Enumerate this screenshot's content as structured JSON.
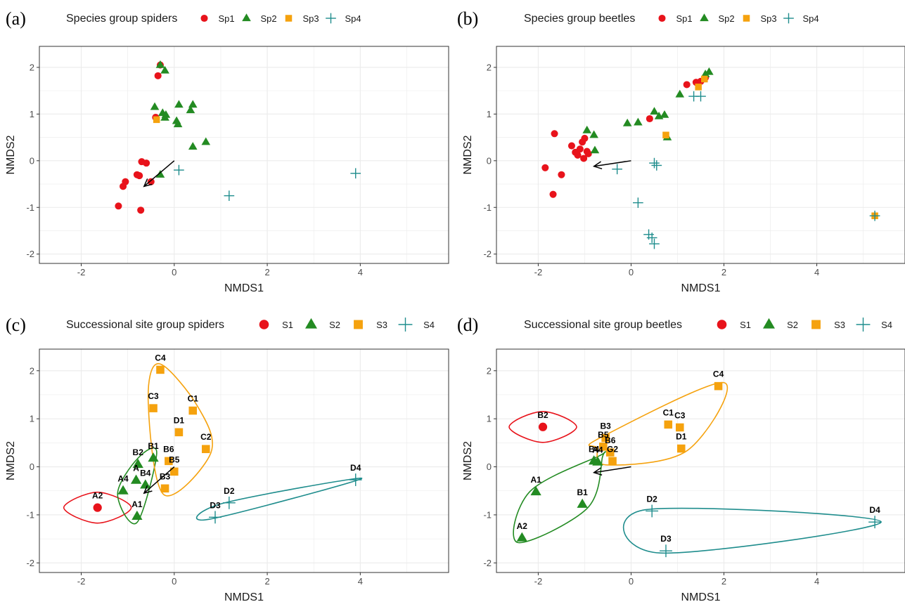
{
  "colors": {
    "Sp1": "#e8131b",
    "Sp2": "#238b22",
    "Sp3": "#f5a20e",
    "Sp4": "#1f8d8d",
    "grid": "#ebebeb",
    "arrow": "#000000"
  },
  "symbols": {
    "Sp1": "circle",
    "Sp2": "triangle",
    "Sp3": "square",
    "Sp4": "plus"
  },
  "chart_data": [
    {
      "panel_letter": "(a)",
      "type": "scatter",
      "legend_title": "Species group spiders",
      "legend_items": [
        "Sp1",
        "Sp2",
        "Sp3",
        "Sp4"
      ],
      "xlabel": "NMDS1",
      "ylabel": "NMDS2",
      "xlim": [
        -2.9,
        5.9
      ],
      "ylim": [
        -2.2,
        2.45
      ],
      "xticks": [
        -2,
        0,
        2,
        4
      ],
      "yticks": [
        -2,
        -1,
        0,
        1,
        2
      ],
      "arrow": {
        "from": [
          0,
          0
        ],
        "to": [
          -0.65,
          -0.55
        ]
      },
      "points": [
        {
          "g": "Sp1",
          "x": -0.3,
          "y": 2.05
        },
        {
          "g": "Sp1",
          "x": -0.35,
          "y": 1.82
        },
        {
          "g": "Sp1",
          "x": -0.4,
          "y": 0.93
        },
        {
          "g": "Sp1",
          "x": -0.7,
          "y": -0.02
        },
        {
          "g": "Sp1",
          "x": -0.6,
          "y": -0.05
        },
        {
          "g": "Sp1",
          "x": -0.8,
          "y": -0.3
        },
        {
          "g": "Sp1",
          "x": -0.75,
          "y": -0.32
        },
        {
          "g": "Sp1",
          "x": -1.05,
          "y": -0.45
        },
        {
          "g": "Sp1",
          "x": -1.1,
          "y": -0.55
        },
        {
          "g": "Sp1",
          "x": -0.5,
          "y": -0.45
        },
        {
          "g": "Sp1",
          "x": -1.2,
          "y": -0.97
        },
        {
          "g": "Sp1",
          "x": -0.72,
          "y": -1.06
        },
        {
          "g": "Sp2",
          "x": -0.3,
          "y": 2.05
        },
        {
          "g": "Sp2",
          "x": -0.2,
          "y": 1.93
        },
        {
          "g": "Sp2",
          "x": -0.42,
          "y": 1.15
        },
        {
          "g": "Sp2",
          "x": -0.25,
          "y": 1.02
        },
        {
          "g": "Sp2",
          "x": -0.18,
          "y": 0.98
        },
        {
          "g": "Sp2",
          "x": -0.2,
          "y": 0.92
        },
        {
          "g": "Sp2",
          "x": 0.1,
          "y": 1.2
        },
        {
          "g": "Sp2",
          "x": 0.4,
          "y": 1.2
        },
        {
          "g": "Sp2",
          "x": 0.35,
          "y": 1.08
        },
        {
          "g": "Sp2",
          "x": 0.05,
          "y": 0.85
        },
        {
          "g": "Sp2",
          "x": 0.08,
          "y": 0.78
        },
        {
          "g": "Sp2",
          "x": 0.4,
          "y": 0.3
        },
        {
          "g": "Sp2",
          "x": 0.68,
          "y": 0.4
        },
        {
          "g": "Sp2",
          "x": -0.3,
          "y": -0.3
        },
        {
          "g": "Sp3",
          "x": -0.38,
          "y": 0.88
        },
        {
          "g": "Sp4",
          "x": 0.1,
          "y": -0.2
        },
        {
          "g": "Sp4",
          "x": 1.18,
          "y": -0.75
        },
        {
          "g": "Sp4",
          "x": 3.9,
          "y": -0.27
        }
      ]
    },
    {
      "panel_letter": "(b)",
      "type": "scatter",
      "legend_title": "Species group beetles",
      "legend_items": [
        "Sp1",
        "Sp2",
        "Sp3",
        "Sp4"
      ],
      "xlabel": "NMDS1",
      "ylabel": "NMDS2",
      "xlim": [
        -2.9,
        5.9
      ],
      "ylim": [
        -2.2,
        2.45
      ],
      "xticks": [
        -2,
        0,
        2,
        4
      ],
      "yticks": [
        -2,
        -1,
        0,
        1,
        2
      ],
      "arrow": {
        "from": [
          0,
          0
        ],
        "to": [
          -0.8,
          -0.12
        ]
      },
      "points": [
        {
          "g": "Sp1",
          "x": -1.65,
          "y": 0.58
        },
        {
          "g": "Sp1",
          "x": -1.85,
          "y": -0.15
        },
        {
          "g": "Sp1",
          "x": -1.5,
          "y": -0.3
        },
        {
          "g": "Sp1",
          "x": -1.68,
          "y": -0.72
        },
        {
          "g": "Sp1",
          "x": -1.28,
          "y": 0.32
        },
        {
          "g": "Sp1",
          "x": -1.2,
          "y": 0.18
        },
        {
          "g": "Sp1",
          "x": -1.15,
          "y": 0.12
        },
        {
          "g": "Sp1",
          "x": -1.1,
          "y": 0.25
        },
        {
          "g": "Sp1",
          "x": -1.05,
          "y": 0.4
        },
        {
          "g": "Sp1",
          "x": -1.0,
          "y": 0.48
        },
        {
          "g": "Sp1",
          "x": -1.02,
          "y": 0.05
        },
        {
          "g": "Sp1",
          "x": -0.95,
          "y": 0.2
        },
        {
          "g": "Sp1",
          "x": -0.92,
          "y": 0.15
        },
        {
          "g": "Sp1",
          "x": 0.4,
          "y": 0.9
        },
        {
          "g": "Sp1",
          "x": 1.2,
          "y": 1.63
        },
        {
          "g": "Sp1",
          "x": 1.4,
          "y": 1.68
        },
        {
          "g": "Sp1",
          "x": 1.5,
          "y": 1.7
        },
        {
          "g": "Sp1",
          "x": 1.6,
          "y": 1.78
        },
        {
          "g": "Sp2",
          "x": -0.95,
          "y": 0.65
        },
        {
          "g": "Sp2",
          "x": -0.8,
          "y": 0.55
        },
        {
          "g": "Sp2",
          "x": -0.78,
          "y": 0.22
        },
        {
          "g": "Sp2",
          "x": -0.08,
          "y": 0.8
        },
        {
          "g": "Sp2",
          "x": 0.15,
          "y": 0.82
        },
        {
          "g": "Sp2",
          "x": 0.5,
          "y": 1.05
        },
        {
          "g": "Sp2",
          "x": 0.6,
          "y": 0.95
        },
        {
          "g": "Sp2",
          "x": 0.72,
          "y": 0.98
        },
        {
          "g": "Sp2",
          "x": 0.78,
          "y": 0.5
        },
        {
          "g": "Sp2",
          "x": 1.05,
          "y": 1.42
        },
        {
          "g": "Sp2",
          "x": 1.6,
          "y": 1.85
        },
        {
          "g": "Sp2",
          "x": 1.68,
          "y": 1.9
        },
        {
          "g": "Sp3",
          "x": 0.75,
          "y": 0.55
        },
        {
          "g": "Sp3",
          "x": 1.45,
          "y": 1.58
        },
        {
          "g": "Sp3",
          "x": 1.58,
          "y": 1.75
        },
        {
          "g": "Sp3",
          "x": 5.25,
          "y": -1.18
        },
        {
          "g": "Sp4",
          "x": -0.3,
          "y": -0.18
        },
        {
          "g": "Sp4",
          "x": 0.5,
          "y": -0.05
        },
        {
          "g": "Sp4",
          "x": 0.55,
          "y": -0.1
        },
        {
          "g": "Sp4",
          "x": 0.15,
          "y": -0.9
        },
        {
          "g": "Sp4",
          "x": 0.38,
          "y": -1.58
        },
        {
          "g": "Sp4",
          "x": 0.45,
          "y": -1.65
        },
        {
          "g": "Sp4",
          "x": 0.5,
          "y": -1.78
        },
        {
          "g": "Sp4",
          "x": 1.35,
          "y": 1.38
        },
        {
          "g": "Sp4",
          "x": 1.5,
          "y": 1.38
        },
        {
          "g": "Sp4",
          "x": 5.25,
          "y": -1.18
        }
      ]
    },
    {
      "panel_letter": "(c)",
      "type": "scatter",
      "legend_title": "Successional site group spiders",
      "legend_items": [
        "S1",
        "S2",
        "S3",
        "S4"
      ],
      "xlabel": "NMDS1",
      "ylabel": "NMDS2",
      "xlim": [
        -2.9,
        5.9
      ],
      "ylim": [
        -2.2,
        2.45
      ],
      "xticks": [
        -2,
        0,
        2,
        4
      ],
      "yticks": [
        -2,
        -1,
        0,
        1,
        2
      ],
      "arrow": {
        "from": [
          0,
          0
        ],
        "to": [
          -0.65,
          -0.55
        ]
      },
      "points": [
        {
          "g": "Sp1",
          "x": -1.65,
          "y": -0.85,
          "label": "A2"
        },
        {
          "g": "Sp2",
          "x": -1.1,
          "y": -0.5,
          "label": "A4"
        },
        {
          "g": "Sp2",
          "x": -0.8,
          "y": -1.03,
          "label": "A1"
        },
        {
          "g": "Sp2",
          "x": -0.82,
          "y": -0.28,
          "label": "A"
        },
        {
          "g": "Sp2",
          "x": -0.78,
          "y": 0.05,
          "label": "B2"
        },
        {
          "g": "Sp2",
          "x": -0.45,
          "y": 0.18,
          "label": "B1"
        },
        {
          "g": "Sp2",
          "x": -0.62,
          "y": -0.38,
          "label": "B4"
        },
        {
          "g": "Sp3",
          "x": -0.3,
          "y": 2.02,
          "label": "C4"
        },
        {
          "g": "Sp3",
          "x": -0.45,
          "y": 1.22,
          "label": "C3"
        },
        {
          "g": "Sp3",
          "x": 0.4,
          "y": 1.17,
          "label": "C1"
        },
        {
          "g": "Sp3",
          "x": 0.1,
          "y": 0.72,
          "label": "D1"
        },
        {
          "g": "Sp3",
          "x": 0.68,
          "y": 0.37,
          "label": "C2"
        },
        {
          "g": "Sp3",
          "x": -0.12,
          "y": 0.12,
          "label": "B6"
        },
        {
          "g": "Sp3",
          "x": 0,
          "y": -0.1,
          "label": "B5"
        },
        {
          "g": "Sp3",
          "x": -0.2,
          "y": -0.45,
          "label": "B3"
        },
        {
          "g": "Sp4",
          "x": 1.18,
          "y": -0.75,
          "label": "D2"
        },
        {
          "g": "Sp4",
          "x": 0.88,
          "y": -1.05,
          "label": "D3"
        },
        {
          "g": "Sp4",
          "x": 3.9,
          "y": -0.27,
          "label": "D4"
        }
      ]
    },
    {
      "panel_letter": "(d)",
      "type": "scatter",
      "legend_title": "Successional site group beetles",
      "legend_items": [
        "S1",
        "S2",
        "S3",
        "S4"
      ],
      "xlabel": "NMDS1",
      "ylabel": "NMDS2",
      "xlim": [
        -2.9,
        5.9
      ],
      "ylim": [
        -2.2,
        2.45
      ],
      "xticks": [
        -2,
        0,
        2,
        4
      ],
      "yticks": [
        -2,
        -1,
        0,
        1,
        2
      ],
      "arrow": {
        "from": [
          0,
          0
        ],
        "to": [
          -0.8,
          -0.12
        ]
      },
      "points": [
        {
          "g": "Sp1",
          "x": -1.9,
          "y": 0.83,
          "label": "B2"
        },
        {
          "g": "Sp2",
          "x": -2.05,
          "y": -0.52,
          "label": "A1"
        },
        {
          "g": "Sp2",
          "x": -2.35,
          "y": -1.48,
          "label": "A2"
        },
        {
          "g": "Sp2",
          "x": -1.05,
          "y": -0.78,
          "label": "B1"
        },
        {
          "g": "Sp2",
          "x": -0.8,
          "y": 0.12,
          "label": "B4"
        },
        {
          "g": "Sp2",
          "x": -0.72,
          "y": 0.1,
          "label": "A4"
        },
        {
          "g": "Sp3",
          "x": -0.55,
          "y": 0.6,
          "label": "B3"
        },
        {
          "g": "Sp3",
          "x": -0.6,
          "y": 0.42,
          "label": "B5"
        },
        {
          "g": "Sp3",
          "x": -0.45,
          "y": 0.3,
          "label": "B6"
        },
        {
          "g": "Sp3",
          "x": -0.4,
          "y": 0.12,
          "label": "G2"
        },
        {
          "g": "Sp3",
          "x": 0.8,
          "y": 0.88,
          "label": "C1"
        },
        {
          "g": "Sp3",
          "x": 1.05,
          "y": 0.82,
          "label": "C3"
        },
        {
          "g": "Sp3",
          "x": 1.08,
          "y": 0.38,
          "label": "D1"
        },
        {
          "g": "Sp3",
          "x": 1.88,
          "y": 1.68,
          "label": "C4"
        },
        {
          "g": "Sp4",
          "x": 0.45,
          "y": -0.92,
          "label": "D2"
        },
        {
          "g": "Sp4",
          "x": 0.75,
          "y": -1.75,
          "label": "D3"
        },
        {
          "g": "Sp4",
          "x": 5.25,
          "y": -1.15,
          "label": "D4"
        }
      ]
    }
  ]
}
